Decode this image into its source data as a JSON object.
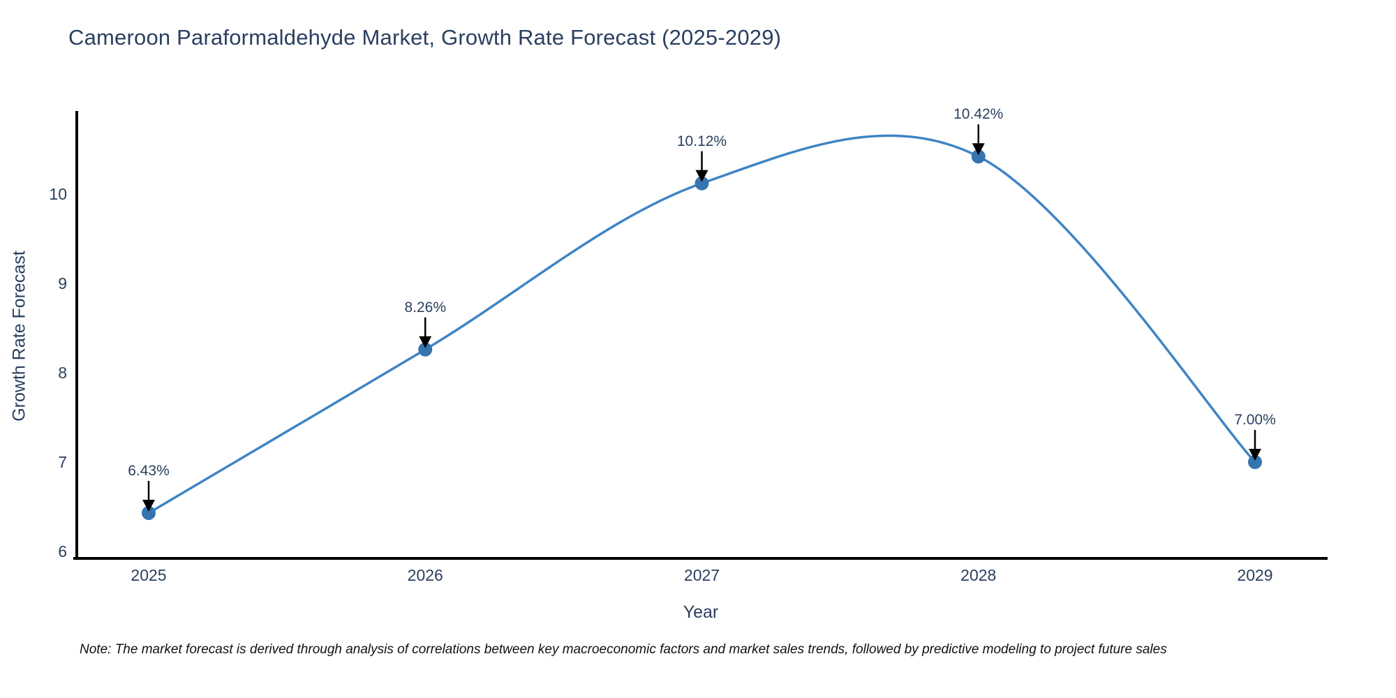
{
  "title": "Cameroon Paraformaldehyde Market, Growth Rate Forecast (2025-2029)",
  "axes": {
    "x_label": "Year",
    "y_label": "Growth Rate Forecast"
  },
  "note": "Note: The market forecast is derived through analysis of correlations between key macroeconomic factors and market sales trends, followed by predictive modeling to project future sales",
  "chart_data": {
    "type": "line",
    "title": "Cameroon Paraformaldehyde Market, Growth Rate Forecast (2025-2029)",
    "x": [
      2025,
      2026,
      2027,
      2028,
      2029
    ],
    "y": [
      6.43,
      8.26,
      10.12,
      10.42,
      7.0
    ],
    "point_labels": [
      "6.43%",
      "8.26%",
      "10.12%",
      "10.42%",
      "7.00%"
    ],
    "xlabel": "Year",
    "ylabel": "Growth Rate Forecast",
    "yticks": [
      6,
      7,
      8,
      9,
      10
    ],
    "xticks": [
      2025,
      2026,
      2027,
      2028,
      2029
    ],
    "ylim": [
      5.92,
      10.93
    ],
    "xlim": [
      2024.74,
      2029.26
    ],
    "line_shape": "spline",
    "grid": false,
    "legend": "none",
    "colors": {
      "line": "#3f84c4",
      "marker": "#3674b0",
      "annotation_arrow": "#000000",
      "axis_line": "#000000",
      "text": "#2a3f5f"
    }
  }
}
